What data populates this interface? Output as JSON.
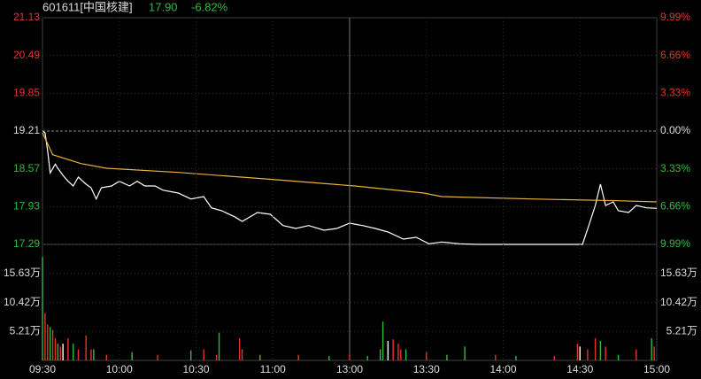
{
  "chart_data": [
    {
      "type": "line",
      "title": "601611[中国核建]",
      "annotations": [
        "17.90",
        "-6.82%"
      ],
      "xlim": [
        0,
        240
      ],
      "ylim": [
        17.29,
        21.13
      ],
      "yticks": [
        21.13,
        20.49,
        19.85,
        19.21,
        18.57,
        17.93,
        17.29
      ],
      "y2lim": [
        -9.99,
        9.99
      ],
      "y2ticks": [
        {
          "value": 9.99,
          "label": "9.99%"
        },
        {
          "value": 6.66,
          "label": "6.66%"
        },
        {
          "value": 3.33,
          "label": "3.33%"
        },
        {
          "value": 0,
          "label": "0.00%"
        },
        {
          "value": -3.33,
          "label": "3.33%"
        },
        {
          "value": -6.66,
          "label": "6.66%"
        },
        {
          "value": -9.99,
          "label": "9.99%"
        }
      ],
      "series": [
        {
          "color": "#ffffff",
          "x": [
            0,
            1,
            2,
            3,
            5,
            6,
            8,
            10,
            12,
            14,
            17,
            19,
            21,
            23,
            27,
            30,
            34,
            37,
            40,
            44,
            47,
            53,
            58,
            63,
            66,
            70,
            75,
            78,
            84,
            89,
            94,
            99,
            104,
            110,
            115,
            120,
            125,
            130,
            135,
            141,
            146,
            151,
            156,
            163,
            170,
            177,
            191,
            205,
            211,
            213,
            216,
            218,
            220,
            223,
            225,
            229,
            232,
            236,
            240
          ],
          "values": [
            19.21,
            19.18,
            18.88,
            18.5,
            18.65,
            18.58,
            18.46,
            18.36,
            18.28,
            18.43,
            18.31,
            18.25,
            18.06,
            18.25,
            18.28,
            18.36,
            18.28,
            18.36,
            18.28,
            18.28,
            18.21,
            18.16,
            18.06,
            18.1,
            17.91,
            17.86,
            17.76,
            17.68,
            17.83,
            17.8,
            17.61,
            17.56,
            17.61,
            17.53,
            17.56,
            17.65,
            17.61,
            17.56,
            17.5,
            17.38,
            17.41,
            17.3,
            17.33,
            17.3,
            17.29,
            17.29,
            17.29,
            17.29,
            17.29,
            17.55,
            17.95,
            18.31,
            17.95,
            18.01,
            17.86,
            17.83,
            17.95,
            17.91,
            17.9
          ]
        },
        {
          "color": "#e8b23a",
          "x": [
            0,
            4,
            15,
            25,
            53,
            87,
            122,
            149,
            156,
            191,
            225,
            240
          ],
          "values": [
            19.18,
            18.81,
            18.66,
            18.58,
            18.51,
            18.4,
            18.28,
            18.16,
            18.1,
            18.06,
            18.03,
            18.01
          ]
        }
      ]
    },
    {
      "type": "bar",
      "xlim": [
        0,
        240
      ],
      "xticks": [
        {
          "value": 0,
          "label": "09:30"
        },
        {
          "value": 30,
          "label": "10:00"
        },
        {
          "value": 60,
          "label": "10:30"
        },
        {
          "value": 90,
          "label": "11:00"
        },
        {
          "value": 120,
          "label": "13:00"
        },
        {
          "value": 150,
          "label": "13:30"
        },
        {
          "value": 180,
          "label": "14:00"
        },
        {
          "value": 210,
          "label": "14:30"
        },
        {
          "value": 240,
          "label": "15:00"
        }
      ],
      "ylim": [
        0,
        20.9
      ],
      "yticks": [
        {
          "value": 15.63,
          "label": "15.63万"
        },
        {
          "value": 10.42,
          "label": "10.42万"
        },
        {
          "value": 5.21,
          "label": "5.21万"
        }
      ],
      "x": [
        0,
        1,
        2,
        3,
        4,
        5,
        6,
        7,
        8,
        10,
        12,
        14,
        17,
        19,
        20,
        25,
        35,
        45,
        58,
        63,
        68,
        69,
        77,
        78,
        85,
        100,
        112,
        120,
        127,
        132,
        133,
        135,
        137,
        139,
        140,
        142,
        150,
        158,
        165,
        177,
        185,
        200,
        209,
        210,
        213,
        216,
        218,
        220,
        225,
        232,
        238,
        239
      ],
      "values": [
        18.7,
        8.5,
        6.5,
        6,
        5.5,
        4,
        3,
        2.5,
        3,
        4,
        3,
        2,
        4.5,
        2,
        2,
        1,
        1.5,
        1,
        1.8,
        2,
        1,
        5,
        4,
        2,
        1,
        1,
        0.8,
        1,
        0.8,
        2,
        7,
        3.5,
        3.8,
        3,
        2,
        2,
        1.5,
        1,
        2.5,
        1,
        0.8,
        0.8,
        3,
        2.5,
        2,
        4,
        3.5,
        2.5,
        1,
        2,
        4,
        2.5
      ],
      "colors": [
        "#2dbb3f",
        "#e5332a",
        "#e5332a",
        "#2dbb3f",
        "#e5332a",
        "#e5332a",
        "#2dbb3f",
        "#e5332a",
        "#ffffff",
        "#e5332a",
        "#2dbb3f",
        "#e5332a",
        "#e5332a",
        "#e5332a",
        "#2dbb3f",
        "#e5332a",
        "#2dbb3f",
        "#e5332a",
        "#2dbb3f",
        "#e5332a",
        "#e5332a",
        "#2dbb3f",
        "#e5332a",
        "#e5332a",
        "#2dbb3f",
        "#e5332a",
        "#2dbb3f",
        "#e5332a",
        "#2dbb3f",
        "#2dbb3f",
        "#2dbb3f",
        "#ffffff",
        "#e5332a",
        "#e5332a",
        "#e5332a",
        "#2dbb3f",
        "#e5332a",
        "#2dbb3f",
        "#2dbb3f",
        "#e5332a",
        "#2dbb3f",
        "#e5332a",
        "#e5332a",
        "#ffffff",
        "#e5332a",
        "#e5332a",
        "#2dbb3f",
        "#e5332a",
        "#2dbb3f",
        "#e5332a",
        "#2dbb3f",
        "#e5332a"
      ]
    }
  ]
}
